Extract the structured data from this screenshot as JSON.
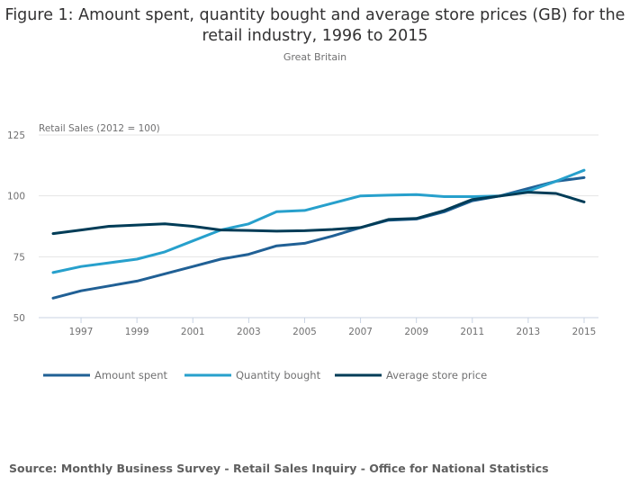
{
  "chart_data": {
    "type": "line",
    "title": "Figure 1: Amount spent, quantity bought and average store prices (GB) for the retail industry, 1996 to 2015",
    "subtitle": "Great Britain",
    "ylabel": "Retail Sales (2012 = 100)",
    "xlabel": "",
    "ylim": [
      50,
      125
    ],
    "yticks": [
      "125",
      "100",
      "75",
      "50"
    ],
    "ytick_values": [
      125,
      100,
      75,
      50
    ],
    "x": [
      1996,
      1997,
      1998,
      1999,
      2000,
      2001,
      2002,
      2003,
      2004,
      2005,
      2006,
      2007,
      2008,
      2009,
      2010,
      2011,
      2012,
      2013,
      2014,
      2015
    ],
    "xticks": [
      "1997",
      "1999",
      "2001",
      "2003",
      "2005",
      "2007",
      "2009",
      "2011",
      "2013",
      "2015"
    ],
    "xtick_values": [
      1997,
      1999,
      2001,
      2003,
      2005,
      2007,
      2009,
      2011,
      2013,
      2015
    ],
    "grid": true,
    "legend_position": "bottom-left",
    "series": [
      {
        "name": "Amount spent",
        "color": "#206095",
        "values": [
          58,
          61,
          63,
          65,
          68,
          71,
          74,
          76,
          79.5,
          80.5,
          83.5,
          87,
          90,
          90.5,
          93.5,
          98,
          100,
          103,
          106,
          107.5
        ]
      },
      {
        "name": "Quantity bought",
        "color": "#27a0cc",
        "values": [
          68.5,
          71,
          72.5,
          74,
          77,
          81.5,
          86,
          88.5,
          93.5,
          94,
          97,
          100,
          100.3,
          100.5,
          99.7,
          99.7,
          100,
          102,
          106,
          110.5
        ]
      },
      {
        "name": "Average store price",
        "color": "#003c57",
        "values": [
          84.5,
          86,
          87.5,
          88,
          88.5,
          87.5,
          86,
          85.8,
          85.5,
          85.7,
          86.2,
          87,
          90.3,
          90.7,
          94,
          98.5,
          100,
          101.5,
          101,
          97.5
        ]
      }
    ],
    "source": "Source: Monthly Business Survey - Retail Sales Inquiry - Office for National Statistics"
  }
}
